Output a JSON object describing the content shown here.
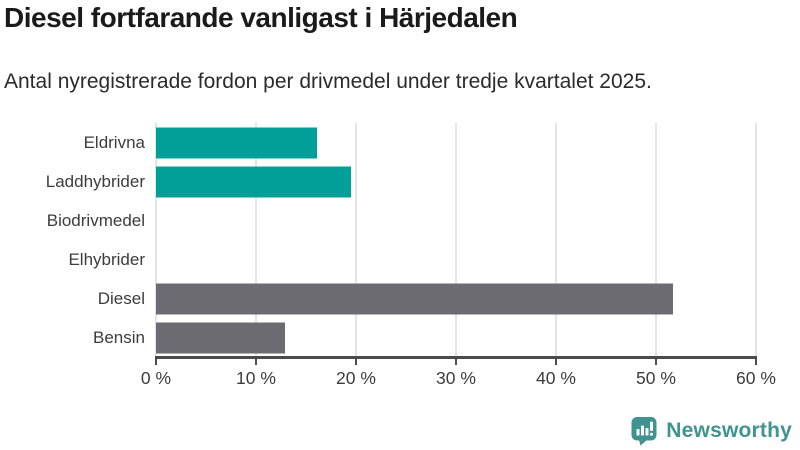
{
  "header": {
    "title": "Diesel fortfarande vanligast i Härjedalen",
    "subtitle": "Antal nyregistrerade fordon per drivmedel under tredje kvartalet 2025."
  },
  "chart_data": {
    "type": "bar",
    "orientation": "horizontal",
    "title": "Diesel fortfarande vanligast i Härjedalen",
    "subtitle": "Antal nyregistrerade fordon per drivmedel under tredje kvartalet 2025.",
    "categories": [
      "Eldrivna",
      "Laddhybrider",
      "Biodrivmedel",
      "Elhybrider",
      "Diesel",
      "Bensin"
    ],
    "values": [
      16.1,
      19.5,
      0,
      0,
      51.7,
      12.9
    ],
    "unit": "%",
    "bar_colors": [
      "#00A099",
      "#00A099",
      "#00A099",
      "#00A099",
      "#6C6B71",
      "#6C6B71"
    ],
    "xlabel": "",
    "ylabel": "",
    "xlim": [
      0,
      60
    ],
    "xticks": [
      0,
      10,
      20,
      30,
      40,
      50,
      60
    ],
    "xtick_labels": [
      "0 %",
      "10 %",
      "20 %",
      "30 %",
      "40 %",
      "50 %",
      "60 %"
    ],
    "grid": "vertical",
    "legend": "none"
  },
  "footer": {
    "brand": "Newsworthy"
  },
  "colors": {
    "teal_bar": "#00A099",
    "gray_bar": "#6C6B71",
    "brand_teal": "#3F948F",
    "gridline": "#E4E4E4",
    "axis": "#4B4B4F",
    "title_text": "#1A1A1A"
  }
}
